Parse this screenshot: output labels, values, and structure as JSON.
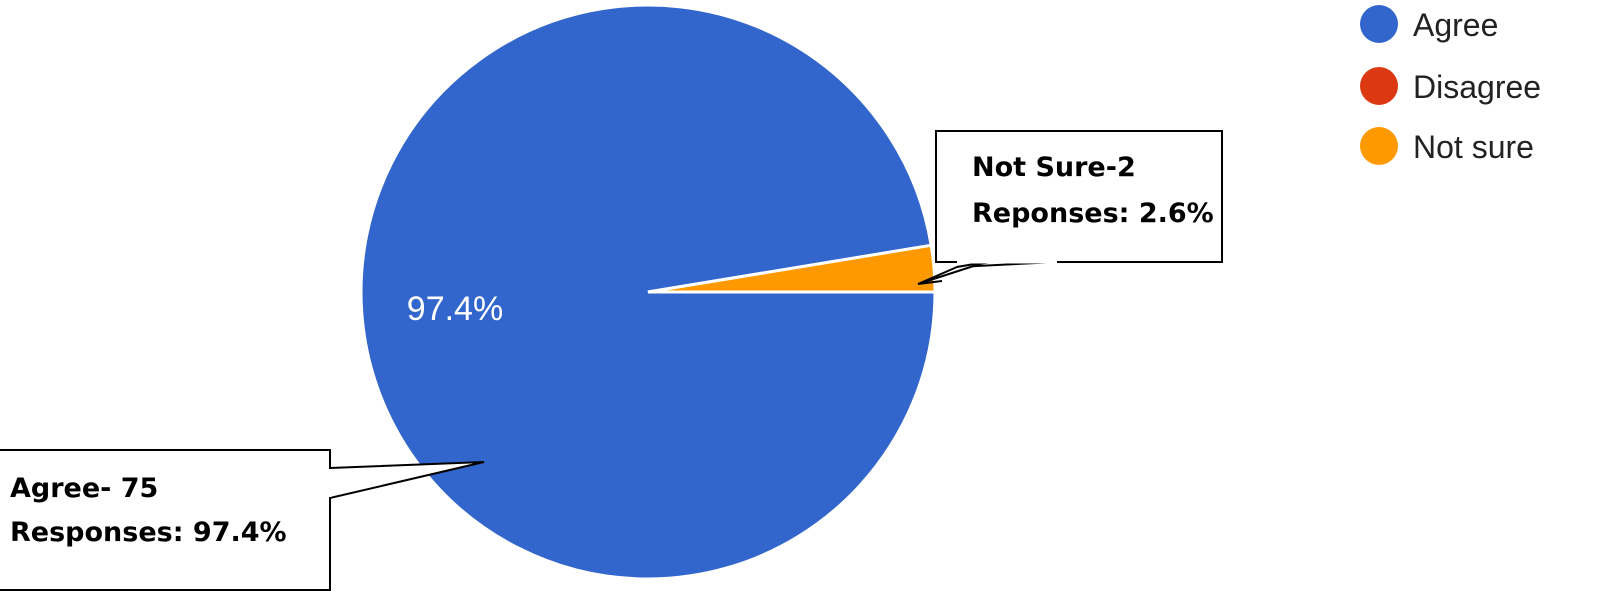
{
  "chart_data": {
    "type": "pie",
    "slices": [
      {
        "label": "Agree",
        "value": 97.4,
        "color": "#3366CC"
      },
      {
        "label": "Disagree",
        "value": 0,
        "color": "#DC3912"
      },
      {
        "label": "Not sure",
        "value": 2.6,
        "color": "#FF9900"
      }
    ],
    "start_angle_deg": 0,
    "direction": "clockwise",
    "inside_labels": [
      {
        "slice": "Agree",
        "text": "97.4%"
      }
    ],
    "legend": {
      "position": "top-right",
      "entries": [
        "Agree",
        "Disagree",
        "Not sure"
      ]
    },
    "callouts": [
      {
        "slice": "Not sure",
        "lines": [
          "Not Sure-2",
          "Reponses: 2.6%"
        ]
      },
      {
        "slice": "Agree",
        "lines": [
          "Agree- 75",
          "Responses: 97.4%"
        ]
      }
    ]
  }
}
